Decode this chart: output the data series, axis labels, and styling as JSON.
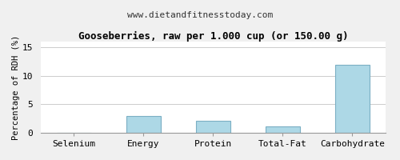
{
  "title": "Gooseberries, raw per 1.000 cup (or 150.00 g)",
  "subtitle": "www.dietandfitnesstoday.com",
  "categories": [
    "Selenium",
    "Energy",
    "Protein",
    "Total-Fat",
    "Carbohydrate"
  ],
  "values": [
    0.0,
    3.0,
    2.1,
    1.1,
    12.0
  ],
  "bar_color": "#add8e6",
  "bar_edge_color": "#7bafc4",
  "ylabel": "Percentage of RDH (%)",
  "ylim": [
    0,
    16
  ],
  "yticks": [
    0,
    5,
    10,
    15
  ],
  "plot_bg": "#ffffff",
  "fig_bg": "#f0f0f0",
  "grid_color": "#cccccc",
  "title_fontsize": 9,
  "subtitle_fontsize": 8,
  "label_fontsize": 7.5,
  "tick_fontsize": 8
}
